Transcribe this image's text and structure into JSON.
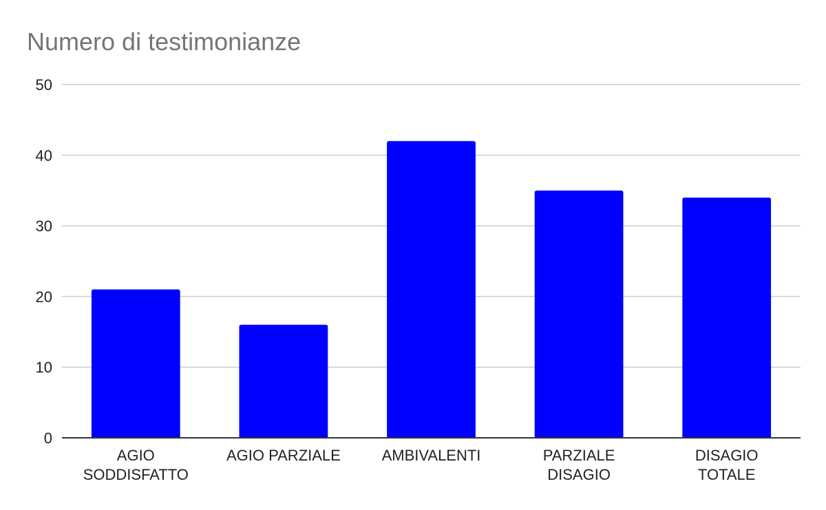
{
  "chart_data": {
    "type": "bar",
    "title": "Numero di testimonianze",
    "xlabel": "",
    "ylabel": "",
    "categories": [
      [
        "AGIO",
        "SODDISFATTO"
      ],
      [
        "AGIO PARZIALE"
      ],
      [
        "AMBIVALENTI"
      ],
      [
        "PARZIALE",
        "DISAGIO"
      ],
      [
        "DISAGIO",
        "TOTALE"
      ]
    ],
    "values": [
      21,
      16,
      42,
      35,
      34
    ],
    "ylim": [
      0,
      50
    ],
    "yticks": [
      "0",
      "10",
      "20",
      "30",
      "40",
      "50"
    ],
    "grid": true,
    "legend": "none",
    "bar_color": "#0000ff"
  }
}
